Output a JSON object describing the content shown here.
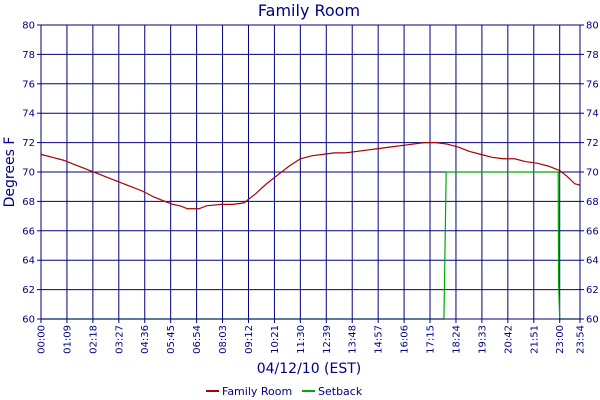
{
  "chart_data": {
    "type": "line",
    "title": "Family Room",
    "xlabel": "04/12/10 (EST)",
    "ylabel": "Degrees F",
    "ylim": [
      60,
      80
    ],
    "y_ticks": [
      60,
      62,
      64,
      66,
      68,
      70,
      72,
      74,
      76,
      78,
      80
    ],
    "x_ticks": [
      "00:00",
      "01:09",
      "02:18",
      "03:27",
      "04:36",
      "05:45",
      "06:54",
      "08:03",
      "09:12",
      "10:21",
      "11:30",
      "12:39",
      "13:48",
      "14:57",
      "16:06",
      "17:15",
      "18:24",
      "19:33",
      "20:42",
      "21:51",
      "23:00",
      "23:54"
    ],
    "grid": true,
    "legend_position": "bottom-center",
    "series": [
      {
        "name": "Family Room",
        "color": "#aa0000",
        "points": [
          [
            "00:00",
            71.2
          ],
          [
            "00:30",
            71.0
          ],
          [
            "01:00",
            70.8
          ],
          [
            "01:30",
            70.5
          ],
          [
            "02:00",
            70.2
          ],
          [
            "02:30",
            69.9
          ],
          [
            "03:00",
            69.6
          ],
          [
            "03:30",
            69.3
          ],
          [
            "04:00",
            69.0
          ],
          [
            "04:30",
            68.7
          ],
          [
            "05:00",
            68.3
          ],
          [
            "05:30",
            68.0
          ],
          [
            "05:50",
            67.8
          ],
          [
            "06:10",
            67.7
          ],
          [
            "06:30",
            67.5
          ],
          [
            "07:00",
            67.5
          ],
          [
            "07:20",
            67.7
          ],
          [
            "08:00",
            67.8
          ],
          [
            "08:30",
            67.8
          ],
          [
            "09:00",
            67.9
          ],
          [
            "09:30",
            68.5
          ],
          [
            "10:00",
            69.2
          ],
          [
            "10:30",
            69.8
          ],
          [
            "11:00",
            70.4
          ],
          [
            "11:30",
            70.9
          ],
          [
            "12:00",
            71.1
          ],
          [
            "12:30",
            71.2
          ],
          [
            "13:00",
            71.3
          ],
          [
            "13:30",
            71.3
          ],
          [
            "14:00",
            71.4
          ],
          [
            "14:30",
            71.5
          ],
          [
            "15:00",
            71.6
          ],
          [
            "15:30",
            71.7
          ],
          [
            "16:00",
            71.8
          ],
          [
            "16:30",
            71.9
          ],
          [
            "17:00",
            72.0
          ],
          [
            "17:30",
            72.0
          ],
          [
            "18:00",
            71.9
          ],
          [
            "18:30",
            71.7
          ],
          [
            "19:00",
            71.4
          ],
          [
            "19:30",
            71.2
          ],
          [
            "20:00",
            71.0
          ],
          [
            "20:30",
            70.9
          ],
          [
            "21:00",
            70.9
          ],
          [
            "21:30",
            70.7
          ],
          [
            "22:00",
            70.6
          ],
          [
            "22:30",
            70.4
          ],
          [
            "23:00",
            70.1
          ],
          [
            "23:20",
            69.7
          ],
          [
            "23:40",
            69.2
          ],
          [
            "23:54",
            69.1
          ]
        ]
      },
      {
        "name": "Setback",
        "color": "#00aa00",
        "points": [
          [
            "00:00",
            60
          ],
          [
            "17:30",
            60
          ],
          [
            "17:52",
            60
          ],
          [
            "17:58",
            70
          ],
          [
            "22:50",
            70
          ],
          [
            "22:56",
            70
          ],
          [
            "22:57",
            62.5
          ],
          [
            "23:00",
            60
          ],
          [
            "23:54",
            60
          ]
        ]
      }
    ]
  }
}
